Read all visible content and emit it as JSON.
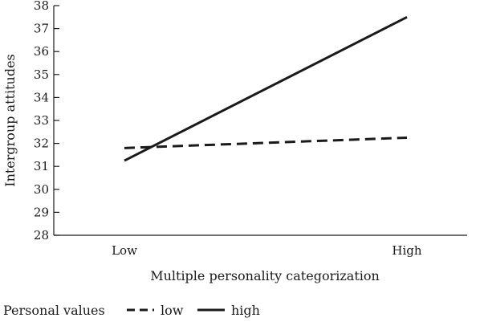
{
  "chart_data": {
    "type": "line",
    "categories": [
      "Low",
      "High"
    ],
    "xlabel": "Multiple personality categorization",
    "ylabel": "Intergroup attitudes",
    "ylim": [
      28,
      38
    ],
    "yticks": [
      28,
      29,
      30,
      31,
      32,
      33,
      34,
      35,
      36,
      37,
      38
    ],
    "grid": false,
    "legend": {
      "title": "Personal values",
      "placement": "bottom-left"
    },
    "series": [
      {
        "name": "low",
        "style": "dashed",
        "color": "#1a1a1a",
        "values": [
          31.8,
          32.25
        ]
      },
      {
        "name": "high",
        "style": "solid",
        "color": "#1a1a1a",
        "values": [
          31.25,
          37.5
        ]
      }
    ]
  }
}
